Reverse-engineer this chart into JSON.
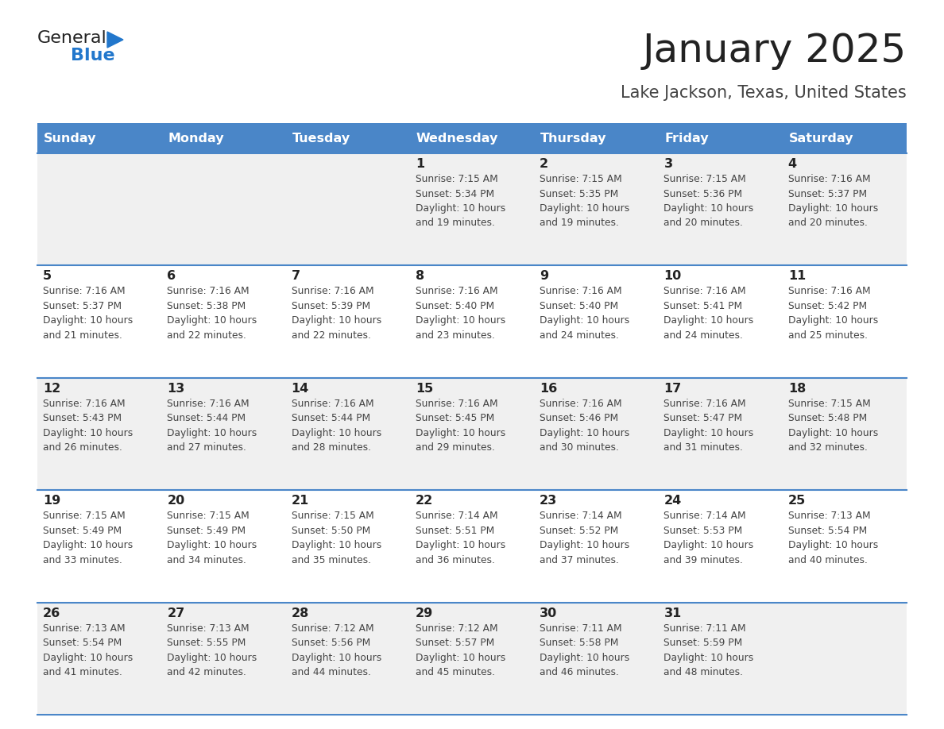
{
  "title": "January 2025",
  "subtitle": "Lake Jackson, Texas, United States",
  "days_of_week": [
    "Sunday",
    "Monday",
    "Tuesday",
    "Wednesday",
    "Thursday",
    "Friday",
    "Saturday"
  ],
  "header_bg": "#4a86c8",
  "header_text": "#ffffff",
  "cell_bg_light": "#f0f0f0",
  "cell_bg_white": "#ffffff",
  "cell_border": "#4a86c8",
  "title_color": "#222222",
  "subtitle_color": "#444444",
  "day_num_color": "#222222",
  "info_color": "#444444",
  "logo_general_color": "#222222",
  "logo_blue_color": "#2277cc",
  "weeks": [
    [
      {
        "day": 0,
        "info": ""
      },
      {
        "day": 0,
        "info": ""
      },
      {
        "day": 0,
        "info": ""
      },
      {
        "day": 1,
        "info": "Sunrise: 7:15 AM\nSunset: 5:34 PM\nDaylight: 10 hours\nand 19 minutes."
      },
      {
        "day": 2,
        "info": "Sunrise: 7:15 AM\nSunset: 5:35 PM\nDaylight: 10 hours\nand 19 minutes."
      },
      {
        "day": 3,
        "info": "Sunrise: 7:15 AM\nSunset: 5:36 PM\nDaylight: 10 hours\nand 20 minutes."
      },
      {
        "day": 4,
        "info": "Sunrise: 7:16 AM\nSunset: 5:37 PM\nDaylight: 10 hours\nand 20 minutes."
      }
    ],
    [
      {
        "day": 5,
        "info": "Sunrise: 7:16 AM\nSunset: 5:37 PM\nDaylight: 10 hours\nand 21 minutes."
      },
      {
        "day": 6,
        "info": "Sunrise: 7:16 AM\nSunset: 5:38 PM\nDaylight: 10 hours\nand 22 minutes."
      },
      {
        "day": 7,
        "info": "Sunrise: 7:16 AM\nSunset: 5:39 PM\nDaylight: 10 hours\nand 22 minutes."
      },
      {
        "day": 8,
        "info": "Sunrise: 7:16 AM\nSunset: 5:40 PM\nDaylight: 10 hours\nand 23 minutes."
      },
      {
        "day": 9,
        "info": "Sunrise: 7:16 AM\nSunset: 5:40 PM\nDaylight: 10 hours\nand 24 minutes."
      },
      {
        "day": 10,
        "info": "Sunrise: 7:16 AM\nSunset: 5:41 PM\nDaylight: 10 hours\nand 24 minutes."
      },
      {
        "day": 11,
        "info": "Sunrise: 7:16 AM\nSunset: 5:42 PM\nDaylight: 10 hours\nand 25 minutes."
      }
    ],
    [
      {
        "day": 12,
        "info": "Sunrise: 7:16 AM\nSunset: 5:43 PM\nDaylight: 10 hours\nand 26 minutes."
      },
      {
        "day": 13,
        "info": "Sunrise: 7:16 AM\nSunset: 5:44 PM\nDaylight: 10 hours\nand 27 minutes."
      },
      {
        "day": 14,
        "info": "Sunrise: 7:16 AM\nSunset: 5:44 PM\nDaylight: 10 hours\nand 28 minutes."
      },
      {
        "day": 15,
        "info": "Sunrise: 7:16 AM\nSunset: 5:45 PM\nDaylight: 10 hours\nand 29 minutes."
      },
      {
        "day": 16,
        "info": "Sunrise: 7:16 AM\nSunset: 5:46 PM\nDaylight: 10 hours\nand 30 minutes."
      },
      {
        "day": 17,
        "info": "Sunrise: 7:16 AM\nSunset: 5:47 PM\nDaylight: 10 hours\nand 31 minutes."
      },
      {
        "day": 18,
        "info": "Sunrise: 7:15 AM\nSunset: 5:48 PM\nDaylight: 10 hours\nand 32 minutes."
      }
    ],
    [
      {
        "day": 19,
        "info": "Sunrise: 7:15 AM\nSunset: 5:49 PM\nDaylight: 10 hours\nand 33 minutes."
      },
      {
        "day": 20,
        "info": "Sunrise: 7:15 AM\nSunset: 5:49 PM\nDaylight: 10 hours\nand 34 minutes."
      },
      {
        "day": 21,
        "info": "Sunrise: 7:15 AM\nSunset: 5:50 PM\nDaylight: 10 hours\nand 35 minutes."
      },
      {
        "day": 22,
        "info": "Sunrise: 7:14 AM\nSunset: 5:51 PM\nDaylight: 10 hours\nand 36 minutes."
      },
      {
        "day": 23,
        "info": "Sunrise: 7:14 AM\nSunset: 5:52 PM\nDaylight: 10 hours\nand 37 minutes."
      },
      {
        "day": 24,
        "info": "Sunrise: 7:14 AM\nSunset: 5:53 PM\nDaylight: 10 hours\nand 39 minutes."
      },
      {
        "day": 25,
        "info": "Sunrise: 7:13 AM\nSunset: 5:54 PM\nDaylight: 10 hours\nand 40 minutes."
      }
    ],
    [
      {
        "day": 26,
        "info": "Sunrise: 7:13 AM\nSunset: 5:54 PM\nDaylight: 10 hours\nand 41 minutes."
      },
      {
        "day": 27,
        "info": "Sunrise: 7:13 AM\nSunset: 5:55 PM\nDaylight: 10 hours\nand 42 minutes."
      },
      {
        "day": 28,
        "info": "Sunrise: 7:12 AM\nSunset: 5:56 PM\nDaylight: 10 hours\nand 44 minutes."
      },
      {
        "day": 29,
        "info": "Sunrise: 7:12 AM\nSunset: 5:57 PM\nDaylight: 10 hours\nand 45 minutes."
      },
      {
        "day": 30,
        "info": "Sunrise: 7:11 AM\nSunset: 5:58 PM\nDaylight: 10 hours\nand 46 minutes."
      },
      {
        "day": 31,
        "info": "Sunrise: 7:11 AM\nSunset: 5:59 PM\nDaylight: 10 hours\nand 48 minutes."
      },
      {
        "day": 0,
        "info": ""
      }
    ]
  ]
}
